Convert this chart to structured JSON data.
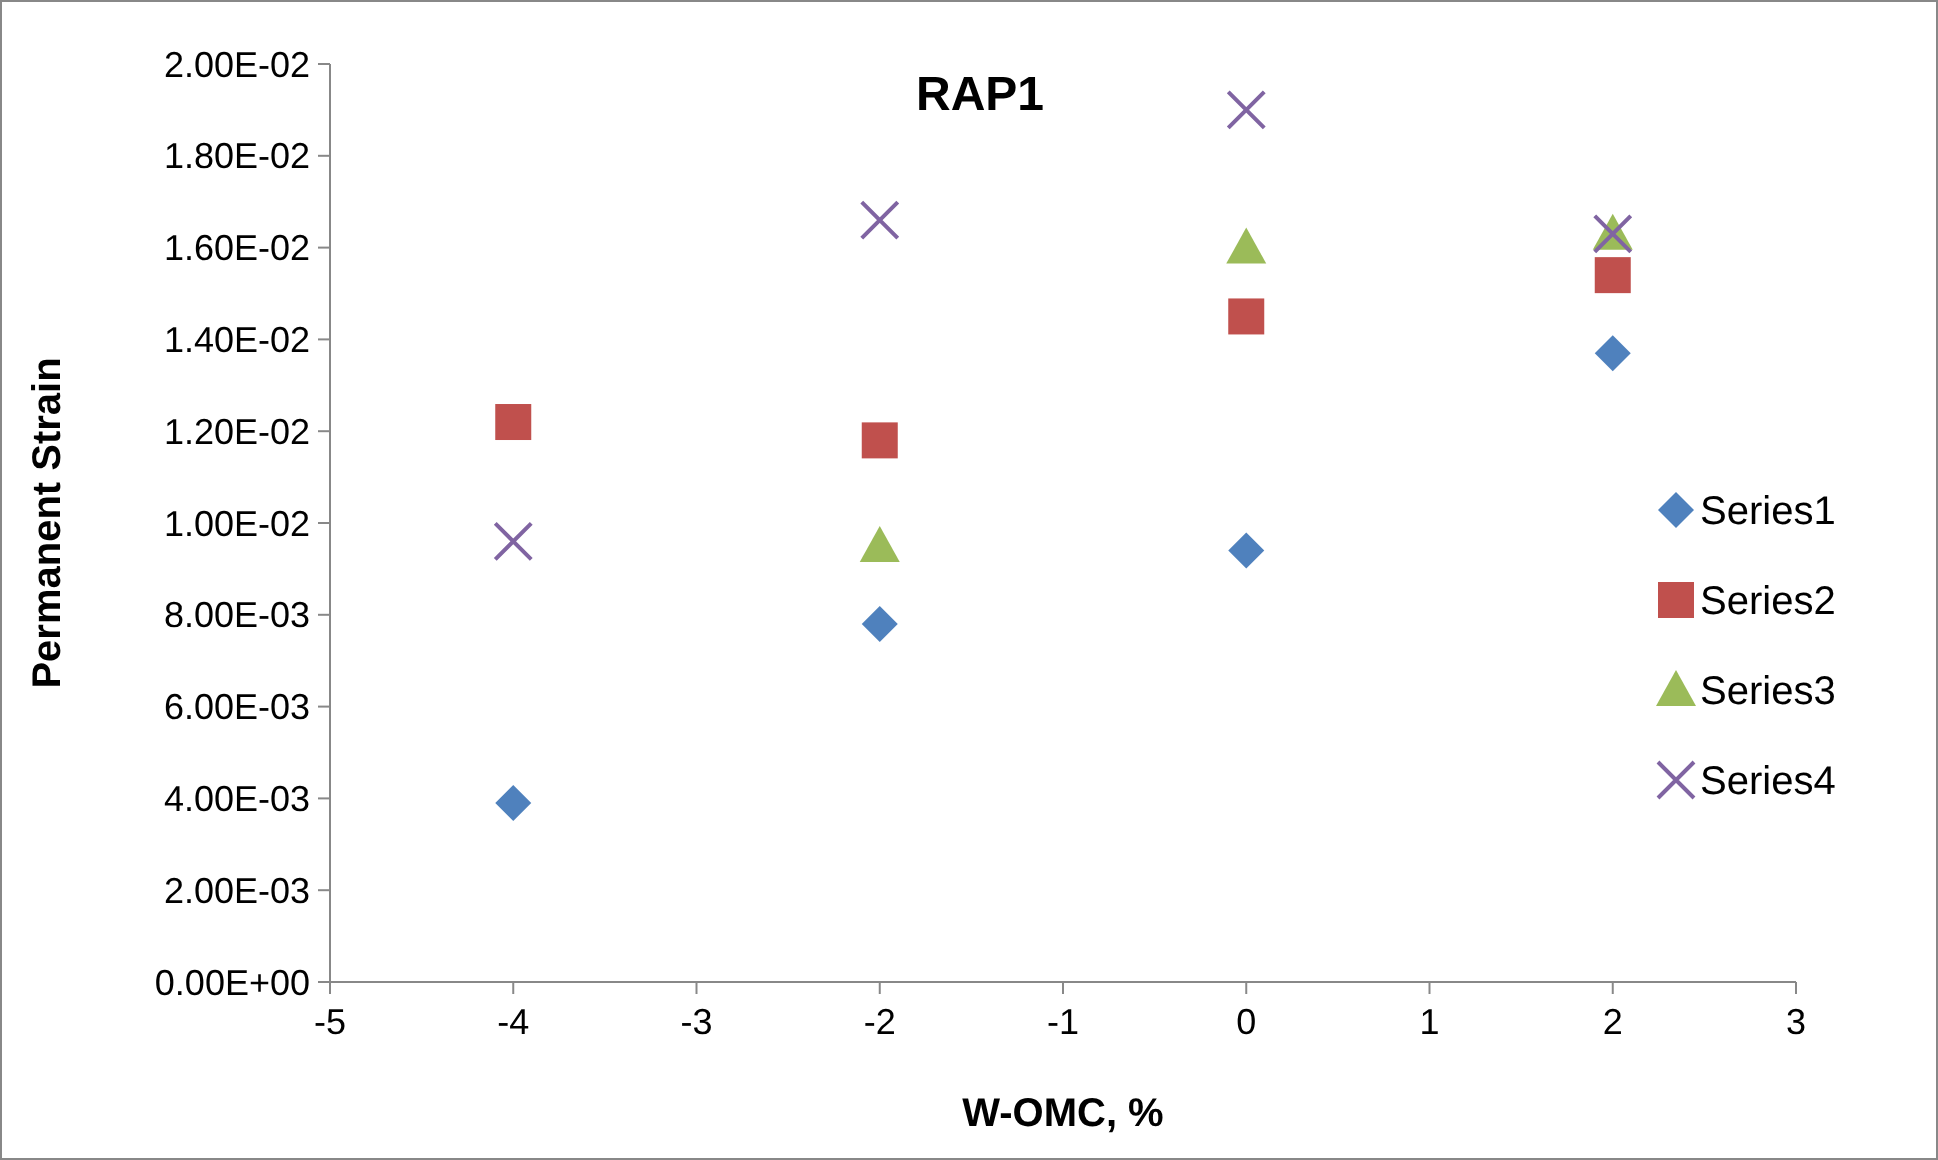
{
  "chart_data": {
    "type": "scatter",
    "title": "RAP1",
    "xlabel": "W-OMC, %",
    "ylabel": "Permanent Strain",
    "x": [
      -4,
      -2,
      0,
      2
    ],
    "series": [
      {
        "name": "Series1",
        "color": "#4f81bd",
        "marker": "diamond",
        "values": [
          0.0039,
          0.0078,
          0.0094,
          0.0137
        ]
      },
      {
        "name": "Series2",
        "color": "#c0504d",
        "marker": "square",
        "values": [
          0.0122,
          0.0118,
          0.0145,
          0.0154
        ]
      },
      {
        "name": "Series3",
        "color": "#9bbb59",
        "marker": "triangle",
        "values": [
          null,
          0.0095,
          0.016,
          0.0163
        ]
      },
      {
        "name": "Series4",
        "color": "#8064a2",
        "marker": "cross",
        "values": [
          0.0096,
          0.0166,
          0.019,
          0.0163
        ]
      }
    ],
    "xlim": [
      -5,
      3
    ],
    "xticks": [
      -5,
      -4,
      -3,
      -2,
      -1,
      0,
      1,
      2,
      3
    ],
    "ylim": [
      0,
      0.02
    ],
    "yticks": [
      {
        "value": 0,
        "label": "0.00E+00"
      },
      {
        "value": 0.002,
        "label": "2.00E-03"
      },
      {
        "value": 0.004,
        "label": "4.00E-03"
      },
      {
        "value": 0.006,
        "label": "6.00E-03"
      },
      {
        "value": 0.008,
        "label": "8.00E-03"
      },
      {
        "value": 0.01,
        "label": "1.00E-02"
      },
      {
        "value": 0.012,
        "label": "1.20E-02"
      },
      {
        "value": 0.014,
        "label": "1.40E-02"
      },
      {
        "value": 0.016,
        "label": "1.60E-02"
      },
      {
        "value": 0.018,
        "label": "1.80E-02"
      },
      {
        "value": 0.02,
        "label": "2.00E-02"
      }
    ],
    "grid": false,
    "legend": "right"
  }
}
